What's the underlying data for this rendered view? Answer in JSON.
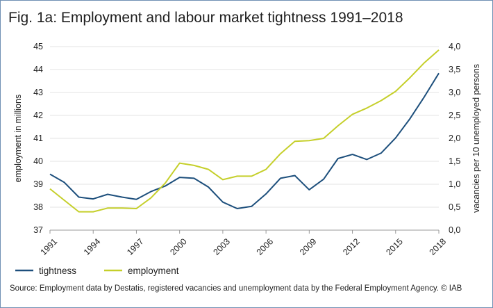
{
  "title": "Fig. 1a: Employment and labour market tightness 1991–2018",
  "source": "Source: Employment data by Destatis, registered vacancies and unemployment data by the Federal Employment Agency. © IAB",
  "chart_data": {
    "type": "line",
    "title": "Fig. 1a: Employment and labour market tightness 1991–2018",
    "x": [
      1991,
      1992,
      1993,
      1994,
      1995,
      1996,
      1997,
      1998,
      1999,
      2000,
      2001,
      2002,
      2003,
      2004,
      2005,
      2006,
      2007,
      2008,
      2009,
      2010,
      2011,
      2012,
      2013,
      2014,
      2015,
      2016,
      2017,
      2018
    ],
    "xticks": [
      "1991",
      "1994",
      "1997",
      "2000",
      "2003",
      "2006",
      "2009",
      "2012",
      "2015",
      "2018"
    ],
    "xlim": [
      1991,
      2018
    ],
    "left_axis": {
      "label": "employment in millions",
      "ylim": [
        37,
        45
      ],
      "ticks": [
        "37",
        "38",
        "39",
        "40",
        "41",
        "42",
        "43",
        "44",
        "45"
      ]
    },
    "right_axis": {
      "label": "vacancies per 10 unemployed persons",
      "ylim": [
        0,
        4
      ],
      "ticks": [
        "0,0",
        "0,5",
        "1,0",
        "1,5",
        "2,0",
        "2,5",
        "3,0",
        "3,5",
        "4,0"
      ]
    },
    "series": [
      {
        "name": "tightness",
        "axis": "right",
        "color": "#1d4f7c",
        "values": [
          1.22,
          1.04,
          0.72,
          0.68,
          0.78,
          0.72,
          0.67,
          0.84,
          0.96,
          1.15,
          1.13,
          0.94,
          0.61,
          0.47,
          0.52,
          0.79,
          1.13,
          1.19,
          0.88,
          1.11,
          1.56,
          1.65,
          1.54,
          1.68,
          2.01,
          2.43,
          2.91,
          3.42
        ]
      },
      {
        "name": "employment",
        "axis": "left",
        "color": "#c5cf2a",
        "values": [
          38.8,
          38.3,
          37.8,
          37.8,
          37.96,
          37.96,
          37.94,
          38.4,
          39.05,
          39.92,
          39.82,
          39.65,
          39.2,
          39.35,
          39.35,
          39.65,
          40.33,
          40.87,
          40.9,
          41.0,
          41.55,
          42.05,
          42.32,
          42.65,
          43.05,
          43.65,
          44.3,
          44.85
        ]
      }
    ],
    "grid": "horizontal",
    "legend": "bottom-left"
  }
}
